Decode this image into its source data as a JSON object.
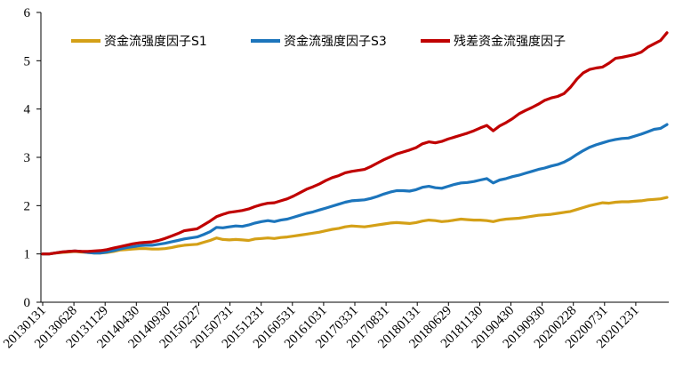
{
  "chart_data": {
    "type": "line",
    "title": "",
    "xlabel": "",
    "ylabel": "",
    "ylim": [
      0,
      6
    ],
    "yticks": [
      0,
      1,
      2,
      3,
      4,
      5,
      6
    ],
    "x_tick_labels": [
      "20130131",
      "20130628",
      "20131129",
      "20140430",
      "20140930",
      "20150227",
      "20150731",
      "20151231",
      "20160531",
      "20161031",
      "20170331",
      "20170831",
      "20180131",
      "20180629",
      "20181130",
      "20190430",
      "20190930",
      "20200228",
      "20200731",
      "20201231"
    ],
    "grid": false,
    "legend": "top-left",
    "n_points": 98,
    "series": [
      {
        "name": "资金流强度因子S1",
        "color": "#D4A017",
        "values": [
          1.0,
          1.0,
          1.02,
          1.03,
          1.04,
          1.05,
          1.04,
          1.03,
          1.02,
          1.02,
          1.03,
          1.05,
          1.08,
          1.09,
          1.1,
          1.11,
          1.11,
          1.1,
          1.1,
          1.11,
          1.13,
          1.16,
          1.18,
          1.19,
          1.2,
          1.24,
          1.28,
          1.33,
          1.3,
          1.29,
          1.3,
          1.29,
          1.28,
          1.31,
          1.32,
          1.33,
          1.32,
          1.34,
          1.35,
          1.37,
          1.39,
          1.41,
          1.43,
          1.45,
          1.48,
          1.51,
          1.53,
          1.56,
          1.58,
          1.57,
          1.56,
          1.58,
          1.6,
          1.62,
          1.64,
          1.65,
          1.64,
          1.63,
          1.65,
          1.68,
          1.7,
          1.69,
          1.67,
          1.68,
          1.7,
          1.72,
          1.71,
          1.7,
          1.7,
          1.69,
          1.67,
          1.7,
          1.72,
          1.73,
          1.74,
          1.76,
          1.78,
          1.8,
          1.81,
          1.82,
          1.84,
          1.86,
          1.88,
          1.92,
          1.96,
          2.0,
          2.03,
          2.06,
          2.05,
          2.07,
          2.08,
          2.08,
          2.09,
          2.1,
          2.12,
          2.13,
          2.14,
          2.17
        ]
      },
      {
        "name": "资金流强度因子S3",
        "color": "#1C75BC",
        "values": [
          1.0,
          1.0,
          1.02,
          1.04,
          1.05,
          1.06,
          1.05,
          1.03,
          1.02,
          1.02,
          1.04,
          1.07,
          1.1,
          1.13,
          1.15,
          1.17,
          1.18,
          1.18,
          1.2,
          1.22,
          1.25,
          1.28,
          1.31,
          1.33,
          1.35,
          1.4,
          1.46,
          1.55,
          1.54,
          1.56,
          1.58,
          1.57,
          1.6,
          1.64,
          1.67,
          1.69,
          1.67,
          1.7,
          1.72,
          1.76,
          1.8,
          1.84,
          1.87,
          1.91,
          1.95,
          1.99,
          2.03,
          2.07,
          2.1,
          2.11,
          2.12,
          2.15,
          2.19,
          2.24,
          2.28,
          2.31,
          2.31,
          2.3,
          2.33,
          2.38,
          2.4,
          2.37,
          2.36,
          2.4,
          2.44,
          2.47,
          2.48,
          2.5,
          2.53,
          2.56,
          2.47,
          2.53,
          2.56,
          2.6,
          2.63,
          2.67,
          2.71,
          2.75,
          2.78,
          2.82,
          2.85,
          2.9,
          2.97,
          3.06,
          3.14,
          3.21,
          3.26,
          3.3,
          3.34,
          3.37,
          3.39,
          3.4,
          3.44,
          3.48,
          3.53,
          3.58,
          3.6,
          3.68
        ]
      },
      {
        "name": "残差资金流强度因子",
        "color": "#C00000",
        "values": [
          1.0,
          1.0,
          1.02,
          1.04,
          1.05,
          1.06,
          1.05,
          1.05,
          1.06,
          1.07,
          1.09,
          1.12,
          1.15,
          1.18,
          1.21,
          1.23,
          1.24,
          1.25,
          1.28,
          1.32,
          1.37,
          1.42,
          1.48,
          1.5,
          1.52,
          1.6,
          1.68,
          1.77,
          1.82,
          1.86,
          1.88,
          1.9,
          1.93,
          1.98,
          2.02,
          2.05,
          2.06,
          2.1,
          2.14,
          2.2,
          2.27,
          2.34,
          2.39,
          2.45,
          2.52,
          2.58,
          2.62,
          2.68,
          2.71,
          2.73,
          2.75,
          2.81,
          2.88,
          2.95,
          3.01,
          3.07,
          3.11,
          3.15,
          3.2,
          3.28,
          3.32,
          3.3,
          3.33,
          3.38,
          3.42,
          3.46,
          3.5,
          3.55,
          3.61,
          3.66,
          3.55,
          3.65,
          3.72,
          3.8,
          3.9,
          3.97,
          4.03,
          4.1,
          4.18,
          4.23,
          4.26,
          4.32,
          4.45,
          4.62,
          4.75,
          4.82,
          4.85,
          4.87,
          4.95,
          5.05,
          5.07,
          5.1,
          5.13,
          5.18,
          5.28,
          5.35,
          5.42,
          5.58
        ]
      }
    ]
  }
}
